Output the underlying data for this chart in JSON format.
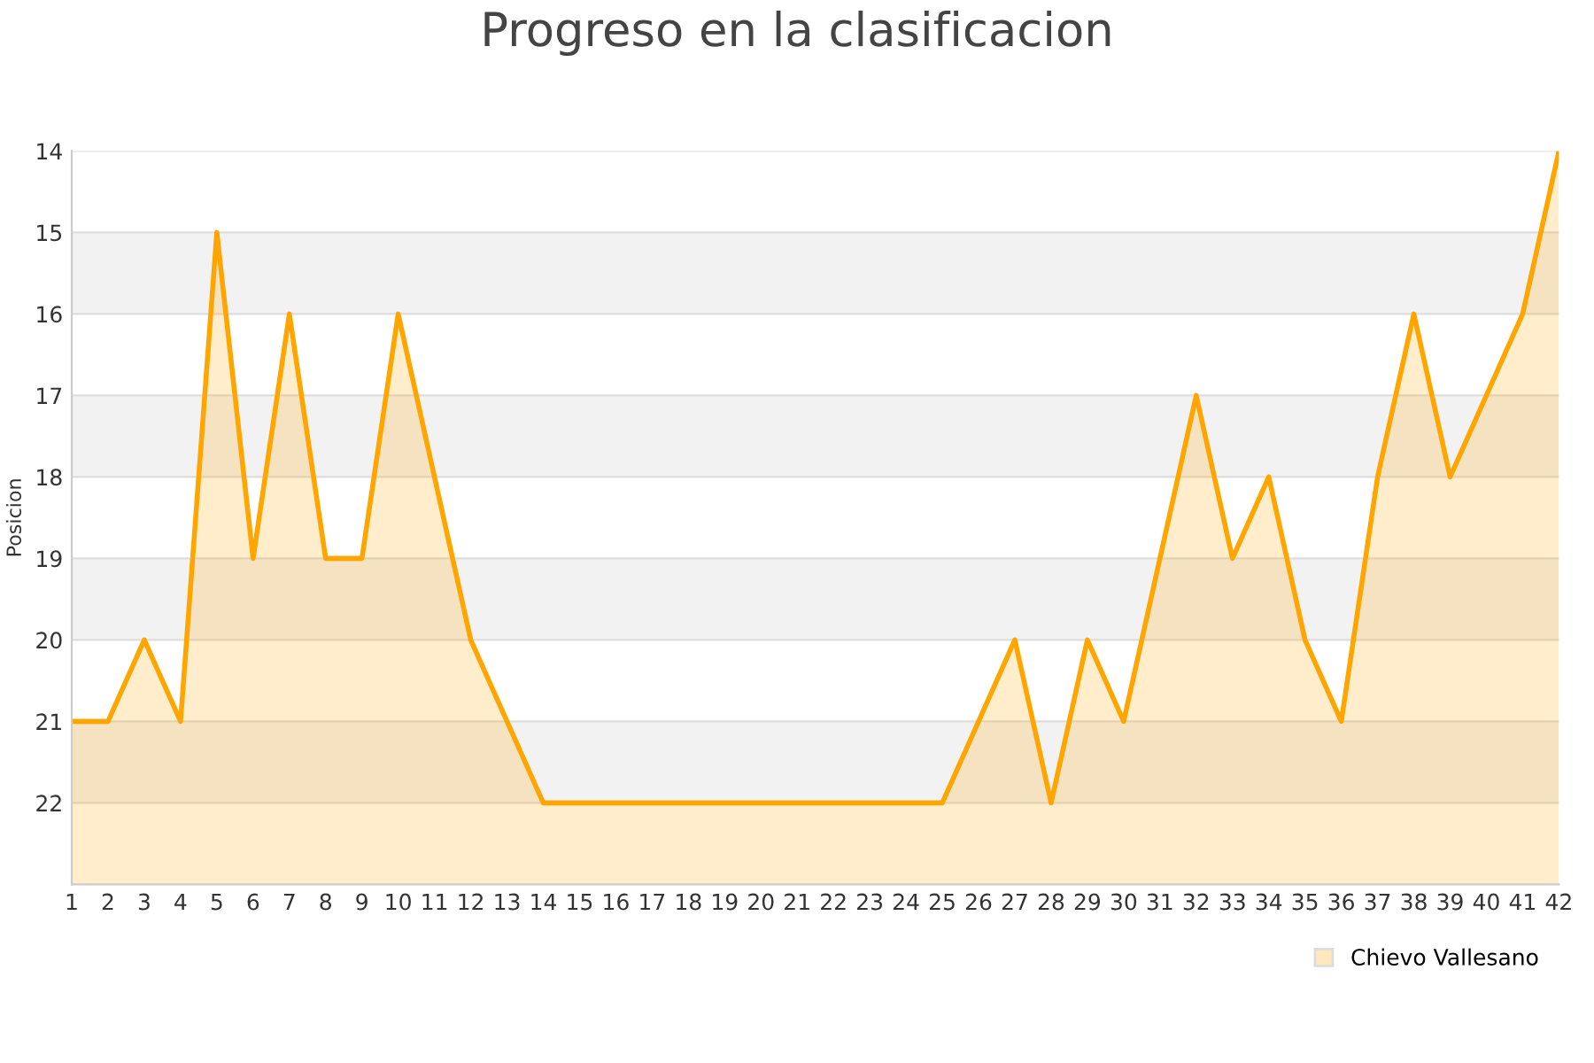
{
  "chart_data": {
    "type": "area",
    "title": "Progreso en la clasificacion",
    "ylabel": "Posicion",
    "x": [
      1,
      2,
      3,
      4,
      5,
      6,
      7,
      8,
      9,
      10,
      11,
      12,
      13,
      14,
      15,
      16,
      17,
      18,
      19,
      20,
      21,
      22,
      23,
      24,
      25,
      26,
      27,
      28,
      29,
      30,
      31,
      32,
      33,
      34,
      35,
      36,
      37,
      38,
      39,
      40,
      41,
      42
    ],
    "series": [
      {
        "name": "Chievo Vallesano",
        "color": "#ffa500",
        "values": [
          21,
          21,
          20,
          21,
          15,
          19,
          16,
          19,
          19,
          16,
          18,
          20,
          21,
          22,
          22,
          22,
          22,
          22,
          22,
          22,
          22,
          22,
          22,
          22,
          22,
          21,
          20,
          22,
          20,
          21,
          19,
          17,
          19,
          18,
          20,
          21,
          18,
          16,
          18,
          17,
          16,
          14
        ]
      }
    ],
    "xlim": [
      1,
      42
    ],
    "xticks": [
      1,
      2,
      3,
      4,
      5,
      6,
      7,
      8,
      9,
      10,
      11,
      12,
      13,
      14,
      15,
      16,
      17,
      18,
      19,
      20,
      21,
      22,
      23,
      24,
      25,
      26,
      27,
      28,
      29,
      30,
      31,
      32,
      33,
      34,
      35,
      36,
      37,
      38,
      39,
      40,
      41,
      42
    ],
    "ylim": [
      23,
      14
    ],
    "yticks": [
      14,
      15,
      16,
      17,
      18,
      19,
      20,
      21,
      22
    ],
    "bands": [
      {
        "axis": "y",
        "from": 15,
        "to": 16,
        "color": "#f2f2f2"
      },
      {
        "axis": "y",
        "from": 17,
        "to": 18,
        "color": "#f2f2f2"
      },
      {
        "axis": "y",
        "from": 19,
        "to": 20,
        "color": "#f2f2f2"
      },
      {
        "axis": "y",
        "from": 21,
        "to": 22,
        "color": "#f2f2f2"
      }
    ],
    "grid": "y",
    "legend": "bottom right",
    "marker": "none",
    "line_style": "solid"
  }
}
